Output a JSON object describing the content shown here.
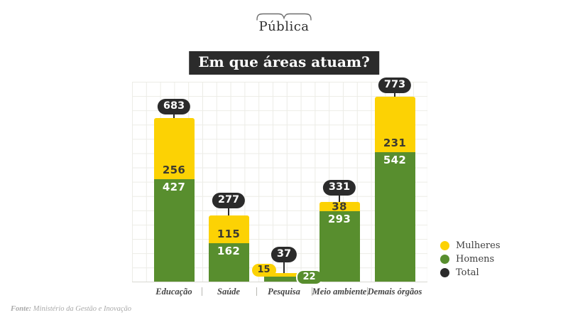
{
  "logo": {
    "text": "Pública"
  },
  "title": "Em que áreas atuam?",
  "legend": [
    {
      "label": "Mulheres",
      "color": "#FCD204"
    },
    {
      "label": "Homens",
      "color": "#588E2E"
    },
    {
      "label": "Total",
      "color": "#2B2B2B"
    }
  ],
  "source": {
    "prefix": "Fonte:",
    "text": "Ministério da Gestão e Inovação"
  },
  "chart_data": {
    "type": "bar",
    "stacked": true,
    "title": "Em que áreas atuam?",
    "categories": [
      "Educação",
      "Saúde",
      "Pesquisa",
      "Meio ambiente",
      "Demais órgãos"
    ],
    "series": [
      {
        "name": "Mulheres",
        "color": "#FCD204",
        "values": [
          256,
          115,
          15,
          38,
          231
        ]
      },
      {
        "name": "Homens",
        "color": "#588E2E",
        "values": [
          427,
          162,
          22,
          293,
          542
        ]
      }
    ],
    "totals": [
      683,
      277,
      37,
      331,
      773
    ],
    "total_badge_color": "#2B2B2B",
    "ylim": [
      0,
      800
    ],
    "grid": true,
    "legend_position": "right"
  }
}
